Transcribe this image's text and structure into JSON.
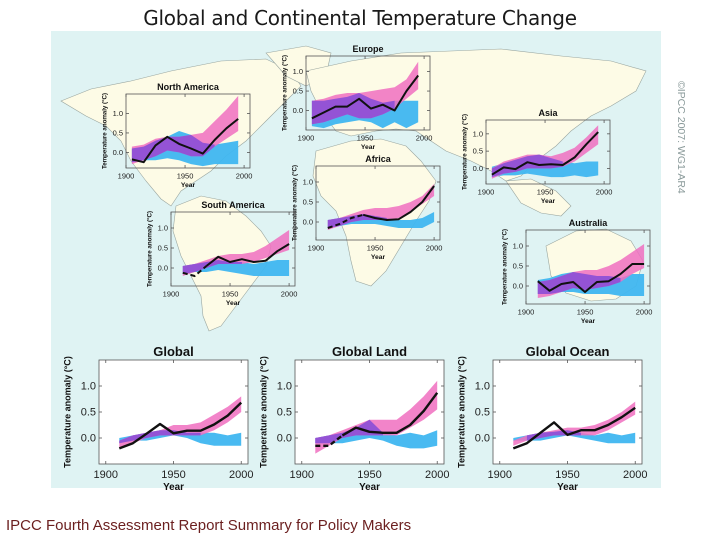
{
  "header": {
    "title": "Global and Continental Temperature Change"
  },
  "copyright": "©IPCC 2007: WG1-AR4",
  "caption": "IPCC Fourth Assessment Report Summary for Policy Makers",
  "colors": {
    "background": "#dff3f3",
    "land": "#fdfbe6",
    "natural_band": "#3fb6f0",
    "overlap_band": "#8d4fd6",
    "all_forcings_band": "#f06fc0",
    "observed_line": "#111111"
  },
  "chart_data": [
    {
      "type": "area",
      "id": "north-america",
      "title": "North America",
      "xlabel": "Year",
      "ylabel": "Temperature anomaly (°C)",
      "xlim": [
        1900,
        2005
      ],
      "ylim": [
        -0.4,
        1.5
      ],
      "xticks": [
        "1900",
        "1950",
        "2000"
      ],
      "yticks": [
        "0.0",
        "0.5",
        "1.0"
      ],
      "x": [
        1905,
        1915,
        1925,
        1935,
        1945,
        1955,
        1965,
        1975,
        1985,
        1995,
        2005
      ],
      "observed": [
        -0.18,
        -0.25,
        0.18,
        0.4,
        0.22,
        0.1,
        -0.03,
        0.32,
        0.62,
        0.86,
        null
      ],
      "observed_dashed_until": null,
      "natural_band": {
        "low": [
          -0.25,
          -0.2,
          -0.2,
          -0.15,
          -0.2,
          -0.3,
          -0.35,
          -0.3,
          -0.3,
          -0.3
        ],
        "high": [
          0.1,
          0.15,
          0.3,
          0.4,
          0.55,
          0.45,
          0.25,
          0.2,
          0.25,
          0.3
        ]
      },
      "all_band": {
        "low": [
          -0.3,
          -0.2,
          -0.1,
          0.05,
          0.0,
          -0.1,
          -0.1,
          0.15,
          0.35,
          0.55
        ],
        "high": [
          0.15,
          0.2,
          0.35,
          0.4,
          0.4,
          0.45,
          0.5,
          0.8,
          1.1,
          1.45
        ]
      },
      "x_model": [
        1905,
        1915,
        1925,
        1935,
        1945,
        1955,
        1965,
        1975,
        1985,
        1995
      ]
    },
    {
      "type": "area",
      "id": "europe",
      "title": "Europe",
      "xlabel": "Year",
      "ylabel": "Temperature anomaly (°C)",
      "xlim": [
        1900,
        2005
      ],
      "ylim": [
        -0.5,
        1.4
      ],
      "xticks": [
        "1900",
        "1950",
        "2000"
      ],
      "yticks": [
        "0.0",
        "0.5",
        "1.0"
      ],
      "x": [
        1905,
        1915,
        1925,
        1935,
        1945,
        1955,
        1965,
        1975,
        1985,
        1995,
        2005
      ],
      "observed": [
        -0.2,
        -0.05,
        0.1,
        0.1,
        0.3,
        0.05,
        0.15,
        0.0,
        0.5,
        0.9,
        null
      ],
      "natural_band": {
        "low": [
          -0.4,
          -0.45,
          -0.35,
          -0.3,
          -0.25,
          -0.3,
          -0.45,
          -0.3,
          -0.45,
          -0.3
        ],
        "high": [
          0.25,
          0.25,
          0.3,
          0.35,
          0.45,
          0.3,
          0.2,
          0.25,
          0.25,
          0.25
        ]
      },
      "all_band": {
        "low": [
          -0.35,
          -0.3,
          -0.2,
          -0.1,
          -0.2,
          -0.2,
          -0.1,
          0.05,
          0.3,
          0.55
        ],
        "high": [
          0.25,
          0.3,
          0.4,
          0.45,
          0.45,
          0.5,
          0.55,
          0.6,
          0.8,
          1.25
        ]
      },
      "x_model": [
        1905,
        1915,
        1925,
        1935,
        1945,
        1955,
        1965,
        1975,
        1985,
        1995
      ]
    },
    {
      "type": "area",
      "id": "asia",
      "title": "Asia",
      "xlabel": "Year",
      "ylabel": "Temperature anomaly (°C)",
      "xlim": [
        1900,
        2005
      ],
      "ylim": [
        -0.45,
        1.4
      ],
      "xticks": [
        "1900",
        "1950",
        "2000"
      ],
      "yticks": [
        "0.0",
        "0.5",
        "1.0"
      ],
      "x": [
        1905,
        1915,
        1925,
        1935,
        1945,
        1955,
        1965,
        1975,
        1985,
        1995,
        2005
      ],
      "observed": [
        -0.18,
        0.03,
        -0.02,
        0.18,
        0.1,
        0.12,
        0.1,
        0.32,
        0.7,
        1.05,
        null
      ],
      "natural_band": {
        "low": [
          -0.25,
          -0.2,
          -0.2,
          -0.15,
          -0.2,
          -0.25,
          -0.25,
          -0.2,
          -0.25,
          -0.2
        ],
        "high": [
          0.05,
          0.15,
          0.25,
          0.35,
          0.4,
          0.3,
          0.2,
          0.15,
          0.2,
          0.2
        ]
      },
      "all_band": {
        "low": [
          -0.3,
          -0.15,
          -0.1,
          0.0,
          0.0,
          0.0,
          0.05,
          0.2,
          0.45,
          0.7
        ],
        "high": [
          0.0,
          0.2,
          0.3,
          0.4,
          0.4,
          0.35,
          0.45,
          0.6,
          0.9,
          1.25
        ]
      },
      "x_model": [
        1905,
        1915,
        1925,
        1935,
        1945,
        1955,
        1965,
        1975,
        1985,
        1995
      ]
    },
    {
      "type": "area",
      "id": "africa",
      "title": "Africa",
      "xlabel": "Year",
      "ylabel": "Temperature anomaly (°C)",
      "xlim": [
        1900,
        2005
      ],
      "ylim": [
        -0.45,
        1.4
      ],
      "xticks": [
        "1900",
        "1950",
        "2000"
      ],
      "yticks": [
        "0.0",
        "0.5",
        "1.0"
      ],
      "x": [
        1910,
        1920,
        1930,
        1940,
        1950,
        1960,
        1970,
        1980,
        1990,
        2000
      ],
      "observed": [
        -0.15,
        -0.05,
        0.1,
        0.18,
        0.1,
        0.05,
        0.07,
        0.25,
        0.5,
        0.9
      ],
      "observed_dashed_until": 1940,
      "natural_band": {
        "low": [
          -0.15,
          -0.1,
          -0.05,
          -0.05,
          -0.05,
          -0.1,
          -0.15,
          -0.15,
          -0.15,
          0.0
        ],
        "high": [
          0.05,
          0.1,
          0.15,
          0.2,
          0.15,
          0.1,
          0.05,
          0.05,
          0.1,
          0.25
        ]
      },
      "all_band": {
        "low": [
          -0.2,
          -0.1,
          0.0,
          0.05,
          0.05,
          0.05,
          0.1,
          0.25,
          0.45,
          0.65
        ],
        "high": [
          0.05,
          0.1,
          0.2,
          0.3,
          0.35,
          0.35,
          0.4,
          0.5,
          0.65,
          0.95
        ]
      },
      "x_model": [
        1910,
        1920,
        1930,
        1940,
        1950,
        1960,
        1970,
        1980,
        1990,
        2000
      ]
    },
    {
      "type": "area",
      "id": "south-america",
      "title": "South America",
      "xlabel": "Year",
      "ylabel": "Temperature anomaly (°C)",
      "xlim": [
        1900,
        2005
      ],
      "ylim": [
        -0.45,
        1.4
      ],
      "xticks": [
        "1900",
        "1950",
        "2000"
      ],
      "yticks": [
        "0.0",
        "0.5",
        "1.0"
      ],
      "x": [
        1910,
        1920,
        1930,
        1940,
        1950,
        1960,
        1970,
        1980,
        1990,
        2000
      ],
      "observed": [
        -0.12,
        -0.2,
        0.05,
        0.28,
        0.15,
        0.22,
        0.15,
        0.18,
        0.42,
        0.6
      ],
      "observed_dashed_until": 1930,
      "natural_band": {
        "low": [
          -0.15,
          -0.1,
          -0.1,
          -0.05,
          -0.1,
          -0.15,
          -0.2,
          -0.2,
          -0.2,
          -0.2
        ],
        "high": [
          0.05,
          0.1,
          0.15,
          0.2,
          0.15,
          0.15,
          0.1,
          0.15,
          0.2,
          0.2
        ]
      },
      "all_band": {
        "low": [
          -0.2,
          -0.1,
          0.0,
          0.1,
          0.1,
          0.1,
          0.15,
          0.25,
          0.35,
          0.45
        ],
        "high": [
          0.05,
          0.1,
          0.2,
          0.3,
          0.35,
          0.35,
          0.4,
          0.55,
          0.75,
          0.95
        ]
      },
      "x_model": [
        1910,
        1920,
        1930,
        1940,
        1950,
        1960,
        1970,
        1980,
        1990,
        2000
      ]
    },
    {
      "type": "area",
      "id": "australia",
      "title": "Australia",
      "xlabel": "Year",
      "ylabel": "Temperature anomaly (°C)",
      "xlim": [
        1900,
        2005
      ],
      "ylim": [
        -0.45,
        1.4
      ],
      "xticks": [
        "1900",
        "1950",
        "2000"
      ],
      "yticks": [
        "0.0",
        "0.5",
        "1.0"
      ],
      "x": [
        1910,
        1920,
        1930,
        1940,
        1950,
        1960,
        1970,
        1980,
        1990,
        2000
      ],
      "observed": [
        0.12,
        -0.12,
        0.05,
        0.1,
        -0.15,
        0.1,
        0.12,
        0.3,
        0.55,
        0.55
      ],
      "natural_band": {
        "low": [
          -0.2,
          -0.2,
          -0.15,
          -0.15,
          -0.2,
          -0.2,
          -0.2,
          -0.25,
          -0.25,
          -0.25
        ],
        "high": [
          0.15,
          0.2,
          0.3,
          0.35,
          0.3,
          0.25,
          0.25,
          0.2,
          0.3,
          0.3
        ]
      },
      "all_band": {
        "low": [
          -0.3,
          -0.25,
          -0.15,
          -0.05,
          -0.1,
          -0.05,
          0.0,
          0.1,
          0.3,
          0.45
        ],
        "high": [
          0.1,
          0.15,
          0.25,
          0.35,
          0.4,
          0.4,
          0.5,
          0.65,
          0.85,
          1.05
        ]
      },
      "x_model": [
        1910,
        1920,
        1930,
        1940,
        1950,
        1960,
        1970,
        1980,
        1990,
        2000
      ]
    },
    {
      "type": "area",
      "id": "global",
      "title": "Global",
      "xlabel": "Year",
      "ylabel": "Temperature anomaly (°C)",
      "xlim": [
        1895,
        2005
      ],
      "ylim": [
        -0.5,
        1.5
      ],
      "xticks": [
        "1900",
        "1950",
        "2000"
      ],
      "yticks": [
        "0.0",
        "0.5",
        "1.0"
      ],
      "x": [
        1910,
        1920,
        1930,
        1940,
        1950,
        1960,
        1970,
        1980,
        1990,
        2000
      ],
      "observed": [
        -0.2,
        -0.1,
        0.08,
        0.27,
        0.09,
        0.14,
        0.14,
        0.26,
        0.43,
        0.68
      ],
      "natural_band": {
        "low": [
          -0.1,
          -0.05,
          -0.05,
          0.0,
          0.05,
          0.0,
          -0.1,
          -0.15,
          -0.15,
          -0.15
        ],
        "high": [
          0.0,
          0.05,
          0.1,
          0.15,
          0.15,
          0.1,
          0.1,
          0.1,
          0.05,
          0.1
        ]
      },
      "all_band": {
        "low": [
          -0.2,
          -0.1,
          0.0,
          0.05,
          0.05,
          0.05,
          0.05,
          0.15,
          0.3,
          0.5
        ],
        "high": [
          -0.05,
          0.05,
          0.1,
          0.15,
          0.25,
          0.25,
          0.3,
          0.45,
          0.6,
          0.8
        ]
      },
      "x_model": [
        1910,
        1920,
        1930,
        1940,
        1950,
        1960,
        1970,
        1980,
        1990,
        2000
      ]
    },
    {
      "type": "area",
      "id": "global-land",
      "title": "Global Land",
      "xlabel": "Year",
      "ylabel": "Temperature anomaly (°C)",
      "xlim": [
        1895,
        2005
      ],
      "ylim": [
        -0.5,
        1.5
      ],
      "xticks": [
        "1900",
        "1950",
        "2000"
      ],
      "yticks": [
        "0.0",
        "0.5",
        "1.0"
      ],
      "x": [
        1910,
        1920,
        1930,
        1940,
        1950,
        1960,
        1970,
        1980,
        1990,
        2000
      ],
      "observed": [
        -0.15,
        -0.15,
        0.05,
        0.2,
        0.12,
        0.1,
        0.1,
        0.25,
        0.52,
        0.87
      ],
      "observed_dashed_until": 1930,
      "natural_band": {
        "low": [
          -0.1,
          -0.1,
          -0.1,
          -0.05,
          0.0,
          -0.05,
          -0.15,
          -0.2,
          -0.2,
          -0.15
        ],
        "high": [
          0.0,
          0.05,
          0.1,
          0.2,
          0.35,
          0.1,
          0.05,
          0.1,
          0.05,
          0.15
        ]
      },
      "all_band": {
        "low": [
          -0.3,
          -0.15,
          0.0,
          0.05,
          0.05,
          0.05,
          0.05,
          0.2,
          0.35,
          0.55
        ],
        "high": [
          0.0,
          0.05,
          0.15,
          0.25,
          0.35,
          0.35,
          0.35,
          0.55,
          0.8,
          1.1
        ]
      },
      "x_model": [
        1910,
        1920,
        1930,
        1940,
        1950,
        1960,
        1970,
        1980,
        1990,
        2000
      ]
    },
    {
      "type": "area",
      "id": "global-ocean",
      "title": "Global Ocean",
      "xlabel": "Year",
      "ylabel": "Temperature anomaly (°C)",
      "xlim": [
        1895,
        2005
      ],
      "ylim": [
        -0.5,
        1.5
      ],
      "xticks": [
        "1900",
        "1950",
        "2000"
      ],
      "yticks": [
        "0.0",
        "0.5",
        "1.0"
      ],
      "x": [
        1910,
        1920,
        1930,
        1940,
        1950,
        1960,
        1970,
        1980,
        1990,
        2000
      ],
      "observed": [
        -0.2,
        -0.1,
        0.1,
        0.3,
        0.06,
        0.15,
        0.15,
        0.25,
        0.4,
        0.58
      ],
      "natural_band": {
        "low": [
          -0.05,
          -0.05,
          -0.05,
          0.0,
          0.05,
          0.0,
          -0.05,
          -0.1,
          -0.1,
          -0.1
        ],
        "high": [
          0.0,
          0.05,
          0.1,
          0.12,
          0.15,
          0.1,
          0.05,
          0.1,
          0.05,
          0.1
        ]
      },
      "all_band": {
        "low": [
          -0.15,
          -0.05,
          0.0,
          0.05,
          0.05,
          0.05,
          0.05,
          0.15,
          0.3,
          0.45
        ],
        "high": [
          -0.05,
          0.05,
          0.1,
          0.15,
          0.2,
          0.2,
          0.25,
          0.35,
          0.5,
          0.7
        ]
      },
      "x_model": [
        1910,
        1920,
        1930,
        1940,
        1950,
        1960,
        1970,
        1980,
        1990,
        2000
      ]
    }
  ]
}
